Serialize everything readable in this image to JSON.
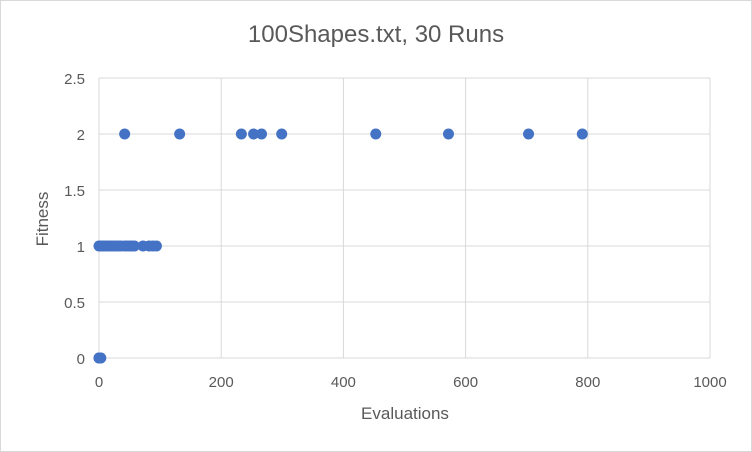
{
  "chart_data": {
    "type": "scatter",
    "title": "100Shapes.txt, 30 Runs",
    "xlabel": "Evaluations",
    "ylabel": "Fitness",
    "xlim": [
      0,
      1000
    ],
    "ylim": [
      0,
      2.5
    ],
    "xticks": [
      0,
      200,
      400,
      600,
      800,
      1000
    ],
    "yticks": [
      0,
      0.5,
      1,
      1.5,
      2,
      2.5
    ],
    "grid": true,
    "legend": "none",
    "marker_color": "#4472c4",
    "series": [
      {
        "points": [
          [
            0,
            0
          ],
          [
            1,
            0
          ],
          [
            2,
            0
          ],
          [
            3,
            0
          ],
          [
            0,
            0
          ],
          [
            0,
            1
          ],
          [
            3,
            1
          ],
          [
            6,
            1
          ],
          [
            9,
            1
          ],
          [
            12,
            1
          ],
          [
            16,
            1
          ],
          [
            20,
            1
          ],
          [
            24,
            1
          ],
          [
            28,
            1
          ],
          [
            32,
            1
          ],
          [
            36,
            1
          ],
          [
            42,
            1
          ],
          [
            46,
            1
          ],
          [
            50,
            1
          ],
          [
            54,
            1
          ],
          [
            58,
            1
          ],
          [
            72,
            1
          ],
          [
            82,
            1
          ],
          [
            88,
            1
          ],
          [
            94,
            1
          ],
          [
            42,
            2
          ],
          [
            132,
            2
          ],
          [
            233,
            2
          ],
          [
            253,
            2
          ],
          [
            266,
            2
          ],
          [
            299,
            2
          ],
          [
            453,
            2
          ],
          [
            572,
            2
          ],
          [
            703,
            2
          ],
          [
            791,
            2
          ]
        ]
      }
    ]
  }
}
